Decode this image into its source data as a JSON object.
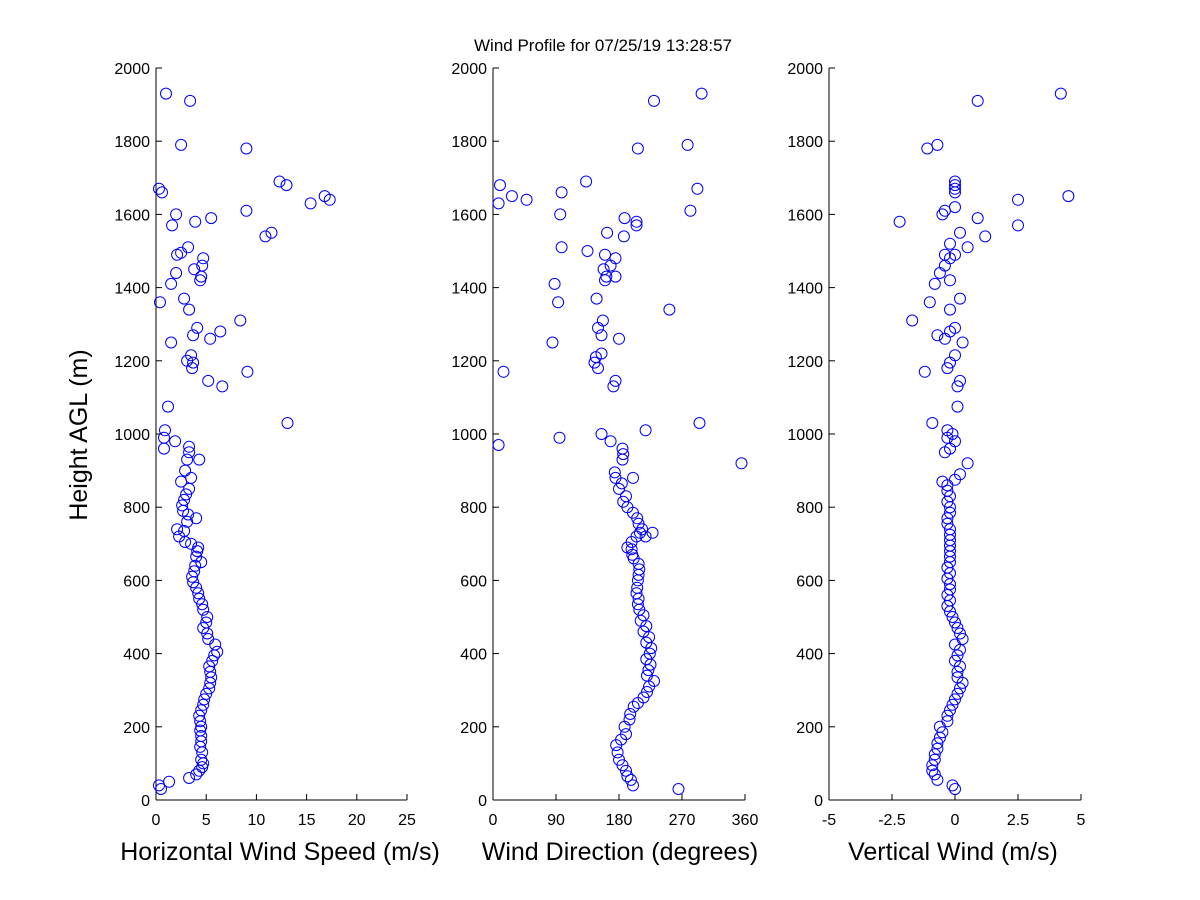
{
  "title": "Wind Profile for  07/25/19 13:28:57",
  "ylabel": "Height AGL (m)",
  "marker_color": "#0000ff",
  "chart_data": [
    {
      "type": "scatter",
      "title": "Wind Profile for  07/25/19 13:28:57",
      "xlabel": "Horizontal Wind Speed (m/s)",
      "ylabel": "Height AGL (m)",
      "xlim": [
        0,
        25
      ],
      "ylim": [
        0,
        2000
      ],
      "xticks": [
        "0",
        "5",
        "10",
        "15",
        "20",
        "25"
      ],
      "xtick_values": [
        0,
        5,
        10,
        15,
        20,
        25
      ],
      "yticks": [
        "0",
        "200",
        "400",
        "600",
        "800",
        "1000",
        "1200",
        "1400",
        "1600",
        "1800",
        "2000"
      ],
      "ytick_values": [
        0,
        200,
        400,
        600,
        800,
        1000,
        1200,
        1400,
        1600,
        1800,
        2000
      ],
      "points": [
        [
          0.3,
          40
        ],
        [
          0.5,
          30
        ],
        [
          1.3,
          50
        ],
        [
          3.3,
          60
        ],
        [
          4.0,
          70
        ],
        [
          4.3,
          80
        ],
        [
          4.6,
          90
        ],
        [
          4.7,
          100
        ],
        [
          4.5,
          110
        ],
        [
          4.6,
          130
        ],
        [
          4.4,
          145
        ],
        [
          4.5,
          160
        ],
        [
          4.5,
          175
        ],
        [
          4.4,
          190
        ],
        [
          4.5,
          200
        ],
        [
          4.4,
          215
        ],
        [
          4.3,
          230
        ],
        [
          4.5,
          245
        ],
        [
          4.7,
          260
        ],
        [
          4.8,
          275
        ],
        [
          5.0,
          290
        ],
        [
          5.3,
          305
        ],
        [
          5.4,
          320
        ],
        [
          5.5,
          335
        ],
        [
          5.4,
          350
        ],
        [
          5.3,
          365
        ],
        [
          5.6,
          380
        ],
        [
          5.8,
          395
        ],
        [
          6.1,
          405
        ],
        [
          5.9,
          425
        ],
        [
          5.2,
          440
        ],
        [
          5.1,
          455
        ],
        [
          4.7,
          470
        ],
        [
          5.0,
          485
        ],
        [
          5.1,
          500
        ],
        [
          4.7,
          520
        ],
        [
          4.6,
          535
        ],
        [
          4.3,
          550
        ],
        [
          4.2,
          565
        ],
        [
          4.0,
          580
        ],
        [
          3.7,
          595
        ],
        [
          3.6,
          610
        ],
        [
          3.8,
          625
        ],
        [
          3.9,
          640
        ],
        [
          4.5,
          650
        ],
        [
          4.0,
          665
        ],
        [
          4.1,
          680
        ],
        [
          4.2,
          690
        ],
        [
          3.5,
          700
        ],
        [
          2.9,
          705
        ],
        [
          2.3,
          720
        ],
        [
          2.8,
          735
        ],
        [
          2.1,
          740
        ],
        [
          3.1,
          760
        ],
        [
          4.0,
          770
        ],
        [
          3.2,
          780
        ],
        [
          2.7,
          790
        ],
        [
          2.6,
          805
        ],
        [
          2.8,
          820
        ],
        [
          3.0,
          835
        ],
        [
          3.3,
          850
        ],
        [
          2.5,
          870
        ],
        [
          3.5,
          880
        ],
        [
          2.9,
          900
        ],
        [
          3.1,
          930
        ],
        [
          4.3,
          930
        ],
        [
          3.3,
          950
        ],
        [
          3.3,
          965
        ],
        [
          1.9,
          980
        ],
        [
          0.8,
          990
        ],
        [
          0.9,
          1010
        ],
        [
          0.8,
          960
        ],
        [
          1.2,
          1075
        ],
        [
          13.1,
          1030
        ],
        [
          6.6,
          1130
        ],
        [
          5.2,
          1145
        ],
        [
          3.6,
          1180
        ],
        [
          9.1,
          1170
        ],
        [
          3.7,
          1195
        ],
        [
          3.5,
          1215
        ],
        [
          3.1,
          1200
        ],
        [
          5.4,
          1260
        ],
        [
          1.5,
          1250
        ],
        [
          3.7,
          1270
        ],
        [
          6.4,
          1280
        ],
        [
          4.1,
          1290
        ],
        [
          8.4,
          1310
        ],
        [
          3.3,
          1340
        ],
        [
          2.8,
          1370
        ],
        [
          0.4,
          1360
        ],
        [
          1.5,
          1410
        ],
        [
          4.4,
          1420
        ],
        [
          4.5,
          1430
        ],
        [
          2.0,
          1440
        ],
        [
          3.8,
          1450
        ],
        [
          4.7,
          1480
        ],
        [
          4.6,
          1460
        ],
        [
          2.1,
          1490
        ],
        [
          2.5,
          1495
        ],
        [
          3.2,
          1510
        ],
        [
          10.9,
          1540
        ],
        [
          11.5,
          1550
        ],
        [
          1.6,
          1570
        ],
        [
          3.9,
          1580
        ],
        [
          5.5,
          1590
        ],
        [
          2.0,
          1600
        ],
        [
          9.0,
          1610
        ],
        [
          15.4,
          1630
        ],
        [
          16.8,
          1650
        ],
        [
          17.3,
          1640
        ],
        [
          0.6,
          1660
        ],
        [
          0.3,
          1670
        ],
        [
          13.0,
          1680
        ],
        [
          12.3,
          1690
        ],
        [
          9.0,
          1780
        ],
        [
          2.5,
          1790
        ],
        [
          3.4,
          1910
        ],
        [
          1.0,
          1930
        ]
      ]
    },
    {
      "type": "scatter",
      "xlabel": "Wind Direction (degrees)",
      "ylabel": "",
      "xlim": [
        0,
        360
      ],
      "ylim": [
        0,
        2000
      ],
      "xticks": [
        "0",
        "90",
        "180",
        "270",
        "360"
      ],
      "xtick_values": [
        0,
        90,
        180,
        270,
        360
      ],
      "yticks": [
        "0",
        "200",
        "400",
        "600",
        "800",
        "1000",
        "1200",
        "1400",
        "1600",
        "1800",
        "2000"
      ],
      "ytick_values": [
        0,
        200,
        400,
        600,
        800,
        1000,
        1200,
        1400,
        1600,
        1800,
        2000
      ],
      "points": [
        [
          200,
          40
        ],
        [
          197,
          55
        ],
        [
          192,
          65
        ],
        [
          190,
          80
        ],
        [
          185,
          95
        ],
        [
          180,
          110
        ],
        [
          178,
          130
        ],
        [
          176,
          150
        ],
        [
          183,
          165
        ],
        [
          190,
          180
        ],
        [
          188,
          200
        ],
        [
          195,
          220
        ],
        [
          196,
          235
        ],
        [
          201,
          255
        ],
        [
          207,
          265
        ],
        [
          215,
          280
        ],
        [
          220,
          295
        ],
        [
          223,
          310
        ],
        [
          230,
          325
        ],
        [
          220,
          340
        ],
        [
          222,
          355
        ],
        [
          225,
          370
        ],
        [
          219,
          385
        ],
        [
          224,
          400
        ],
        [
          226,
          415
        ],
        [
          219,
          430
        ],
        [
          223,
          445
        ],
        [
          215,
          460
        ],
        [
          219,
          475
        ],
        [
          211,
          490
        ],
        [
          215,
          505
        ],
        [
          209,
          520
        ],
        [
          207,
          535
        ],
        [
          208,
          550
        ],
        [
          205,
          565
        ],
        [
          206,
          580
        ],
        [
          207,
          600
        ],
        [
          208,
          615
        ],
        [
          209,
          630
        ],
        [
          208,
          645
        ],
        [
          201,
          660
        ],
        [
          199,
          670
        ],
        [
          198,
          685
        ],
        [
          192,
          690
        ],
        [
          198,
          705
        ],
        [
          205,
          720
        ],
        [
          218,
          720
        ],
        [
          210,
          730
        ],
        [
          228,
          730
        ],
        [
          213,
          740
        ],
        [
          208,
          755
        ],
        [
          206,
          770
        ],
        [
          200,
          785
        ],
        [
          192,
          800
        ],
        [
          186,
          815
        ],
        [
          190,
          830
        ],
        [
          180,
          850
        ],
        [
          184,
          865
        ],
        [
          175,
          880
        ],
        [
          200,
          880
        ],
        [
          174,
          895
        ],
        [
          185,
          930
        ],
        [
          186,
          945
        ],
        [
          185,
          960
        ],
        [
          168,
          980
        ],
        [
          95,
          990
        ],
        [
          8,
          970
        ],
        [
          155,
          1000
        ],
        [
          218,
          1010
        ],
        [
          295,
          1030
        ],
        [
          355,
          920
        ],
        [
          15,
          1170
        ],
        [
          172,
          1130
        ],
        [
          175,
          1145
        ],
        [
          145,
          1195
        ],
        [
          150,
          1180
        ],
        [
          155,
          1220
        ],
        [
          147,
          1210
        ],
        [
          180,
          1260
        ],
        [
          85,
          1250
        ],
        [
          155,
          1270
        ],
        [
          150,
          1290
        ],
        [
          157,
          1310
        ],
        [
          252,
          1340
        ],
        [
          148,
          1370
        ],
        [
          93,
          1360
        ],
        [
          88,
          1410
        ],
        [
          160,
          1420
        ],
        [
          162,
          1430
        ],
        [
          175,
          1430
        ],
        [
          158,
          1450
        ],
        [
          175,
          1480
        ],
        [
          168,
          1460
        ],
        [
          160,
          1490
        ],
        [
          135,
          1500
        ],
        [
          98,
          1510
        ],
        [
          187,
          1540
        ],
        [
          163,
          1550
        ],
        [
          188,
          1590
        ],
        [
          205,
          1580
        ],
        [
          205,
          1570
        ],
        [
          96,
          1600
        ],
        [
          282,
          1610
        ],
        [
          8,
          1630
        ],
        [
          27,
          1650
        ],
        [
          48,
          1640
        ],
        [
          98,
          1660
        ],
        [
          10,
          1680
        ],
        [
          133,
          1690
        ],
        [
          292,
          1670
        ],
        [
          207,
          1780
        ],
        [
          278,
          1790
        ],
        [
          230,
          1910
        ],
        [
          298,
          1930
        ],
        [
          265,
          30
        ]
      ]
    },
    {
      "type": "scatter",
      "xlabel": "Vertical Wind (m/s)",
      "ylabel": "",
      "xlim": [
        -5,
        5
      ],
      "ylim": [
        0,
        2000
      ],
      "xticks": [
        "-5",
        "-2.5",
        "0",
        "2.5",
        "5"
      ],
      "xtick_values": [
        -5,
        -2.5,
        0,
        2.5,
        5
      ],
      "yticks": [
        "0",
        "200",
        "400",
        "600",
        "800",
        "1000",
        "1200",
        "1400",
        "1600",
        "1800",
        "2000"
      ],
      "ytick_values": [
        0,
        200,
        400,
        600,
        800,
        1000,
        1200,
        1400,
        1600,
        1800,
        2000
      ],
      "points": [
        [
          0.0,
          30
        ],
        [
          -0.1,
          40
        ],
        [
          -0.7,
          55
        ],
        [
          -0.8,
          70
        ],
        [
          -0.9,
          80
        ],
        [
          -0.9,
          95
        ],
        [
          -0.8,
          110
        ],
        [
          -0.8,
          125
        ],
        [
          -0.7,
          140
        ],
        [
          -0.7,
          155
        ],
        [
          -0.6,
          170
        ],
        [
          -0.5,
          185
        ],
        [
          -0.6,
          200
        ],
        [
          -0.3,
          215
        ],
        [
          -0.3,
          230
        ],
        [
          -0.2,
          245
        ],
        [
          -0.1,
          260
        ],
        [
          0.0,
          275
        ],
        [
          0.1,
          290
        ],
        [
          0.2,
          305
        ],
        [
          0.3,
          320
        ],
        [
          0.1,
          335
        ],
        [
          0.1,
          350
        ],
        [
          0.2,
          365
        ],
        [
          0.0,
          380
        ],
        [
          0.1,
          395
        ],
        [
          0.2,
          410
        ],
        [
          0.0,
          425
        ],
        [
          0.3,
          440
        ],
        [
          0.2,
          455
        ],
        [
          0.1,
          470
        ],
        [
          0.0,
          485
        ],
        [
          -0.1,
          500
        ],
        [
          -0.2,
          515
        ],
        [
          -0.3,
          530
        ],
        [
          -0.2,
          545
        ],
        [
          -0.3,
          560
        ],
        [
          -0.2,
          575
        ],
        [
          -0.2,
          590
        ],
        [
          -0.3,
          605
        ],
        [
          -0.2,
          620
        ],
        [
          -0.3,
          635
        ],
        [
          -0.2,
          650
        ],
        [
          -0.2,
          665
        ],
        [
          -0.2,
          680
        ],
        [
          -0.2,
          695
        ],
        [
          -0.2,
          710
        ],
        [
          -0.2,
          725
        ],
        [
          -0.2,
          740
        ],
        [
          -0.3,
          755
        ],
        [
          -0.3,
          770
        ],
        [
          -0.2,
          785
        ],
        [
          -0.2,
          800
        ],
        [
          -0.3,
          815
        ],
        [
          -0.2,
          830
        ],
        [
          -0.3,
          845
        ],
        [
          -0.3,
          860
        ],
        [
          0.0,
          875
        ],
        [
          -0.5,
          870
        ],
        [
          0.2,
          890
        ],
        [
          0.5,
          920
        ],
        [
          -0.4,
          950
        ],
        [
          -0.2,
          960
        ],
        [
          0.0,
          980
        ],
        [
          -0.3,
          990
        ],
        [
          -0.1,
          1000
        ],
        [
          -0.3,
          1010
        ],
        [
          -0.9,
          1030
        ],
        [
          0.1,
          1075
        ],
        [
          0.1,
          1130
        ],
        [
          0.2,
          1145
        ],
        [
          -0.3,
          1180
        ],
        [
          -1.2,
          1170
        ],
        [
          -0.2,
          1195
        ],
        [
          0.0,
          1215
        ],
        [
          0.3,
          1250
        ],
        [
          -0.4,
          1260
        ],
        [
          -0.7,
          1270
        ],
        [
          -0.2,
          1280
        ],
        [
          0.0,
          1290
        ],
        [
          -1.7,
          1310
        ],
        [
          -0.2,
          1340
        ],
        [
          0.2,
          1370
        ],
        [
          -1.0,
          1360
        ],
        [
          -0.8,
          1410
        ],
        [
          -0.2,
          1420
        ],
        [
          -0.6,
          1440
        ],
        [
          -0.4,
          1460
        ],
        [
          -0.2,
          1480
        ],
        [
          -0.4,
          1490
        ],
        [
          0.0,
          1490
        ],
        [
          0.5,
          1510
        ],
        [
          -0.2,
          1520
        ],
        [
          0.2,
          1550
        ],
        [
          1.2,
          1540
        ],
        [
          -2.2,
          1580
        ],
        [
          0.9,
          1590
        ],
        [
          2.5,
          1570
        ],
        [
          -0.5,
          1600
        ],
        [
          -0.4,
          1610
        ],
        [
          0.0,
          1620
        ],
        [
          2.5,
          1640
        ],
        [
          4.5,
          1650
        ],
        [
          0.0,
          1660
        ],
        [
          0.0,
          1670
        ],
        [
          0.0,
          1680
        ],
        [
          0.0,
          1690
        ],
        [
          -1.1,
          1780
        ],
        [
          -0.7,
          1790
        ],
        [
          0.9,
          1910
        ],
        [
          4.2,
          1930
        ]
      ]
    }
  ]
}
